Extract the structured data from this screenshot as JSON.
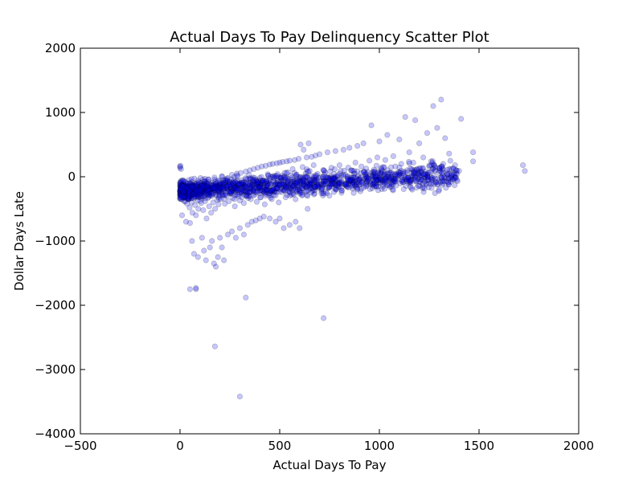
{
  "chart_data": {
    "type": "scatter",
    "title": "Actual Days To Pay Delinquency Scatter Plot",
    "xlabel": "Actual Days To Pay",
    "ylabel": "Dollar Days Late",
    "xlim": [
      -500,
      2000
    ],
    "ylim": [
      -4000,
      2000
    ],
    "xticks": [
      -500,
      0,
      500,
      1000,
      1500,
      2000
    ],
    "yticks": [
      -4000,
      -3000,
      -2000,
      -1000,
      0,
      1000,
      2000
    ],
    "xtick_labels": [
      "−500",
      "0",
      "500",
      "1000",
      "1500",
      "2000"
    ],
    "ytick_labels": [
      "−4000",
      "−3000",
      "−2000",
      "−1000",
      "0",
      "1000",
      "2000"
    ],
    "grid": false,
    "marker_color": "#0000ff",
    "marker_edge_color": "#000000",
    "marker_alpha": 0.22,
    "points": [
      [
        0,
        160
      ],
      [
        0,
        140
      ],
      [
        2,
        170
      ],
      [
        5,
        120
      ],
      [
        8,
        -120
      ],
      [
        10,
        -200
      ],
      [
        12,
        -260
      ],
      [
        15,
        -150
      ],
      [
        18,
        -300
      ],
      [
        20,
        -60
      ],
      [
        22,
        -380
      ],
      [
        25,
        -240
      ],
      [
        28,
        -180
      ],
      [
        30,
        -320
      ],
      [
        32,
        -100
      ],
      [
        35,
        -420
      ],
      [
        38,
        -270
      ],
      [
        40,
        -150
      ],
      [
        42,
        -350
      ],
      [
        45,
        -50
      ],
      [
        48,
        -480
      ],
      [
        50,
        -230
      ],
      [
        52,
        -120
      ],
      [
        55,
        -300
      ],
      [
        58,
        -400
      ],
      [
        60,
        -80
      ],
      [
        62,
        -560
      ],
      [
        65,
        -260
      ],
      [
        68,
        -190
      ],
      [
        70,
        -340
      ],
      [
        72,
        -30
      ],
      [
        75,
        -440
      ],
      [
        78,
        -210
      ],
      [
        80,
        -600
      ],
      [
        82,
        -120
      ],
      [
        85,
        -280
      ],
      [
        88,
        -370
      ],
      [
        90,
        -60
      ],
      [
        92,
        -500
      ],
      [
        95,
        -230
      ],
      [
        98,
        -160
      ],
      [
        100,
        -320
      ],
      [
        103,
        -20
      ],
      [
        106,
        -410
      ],
      [
        110,
        -250
      ],
      [
        113,
        -140
      ],
      [
        116,
        -520
      ],
      [
        120,
        -300
      ],
      [
        123,
        -80
      ],
      [
        126,
        -380
      ],
      [
        130,
        -200
      ],
      [
        133,
        -650
      ],
      [
        136,
        -120
      ],
      [
        140,
        -330
      ],
      [
        143,
        -40
      ],
      [
        146,
        -460
      ],
      [
        150,
        -250
      ],
      [
        153,
        -170
      ],
      [
        156,
        -560
      ],
      [
        160,
        -300
      ],
      [
        163,
        -90
      ],
      [
        166,
        -400
      ],
      [
        170,
        -220
      ],
      [
        173,
        -10
      ],
      [
        176,
        -500
      ],
      [
        180,
        -280
      ],
      [
        183,
        -150
      ],
      [
        186,
        -360
      ],
      [
        190,
        -60
      ],
      [
        193,
        -430
      ],
      [
        196,
        -240
      ],
      [
        200,
        -120
      ],
      [
        205,
        -350
      ],
      [
        210,
        10
      ],
      [
        215,
        -280
      ],
      [
        220,
        -190
      ],
      [
        225,
        -420
      ],
      [
        230,
        -80
      ],
      [
        235,
        -300
      ],
      [
        240,
        -20
      ],
      [
        245,
        -380
      ],
      [
        250,
        -160
      ],
      [
        255,
        -250
      ],
      [
        260,
        30
      ],
      [
        265,
        -330
      ],
      [
        270,
        -110
      ],
      [
        275,
        -460
      ],
      [
        280,
        -200
      ],
      [
        285,
        50
      ],
      [
        290,
        -280
      ],
      [
        295,
        -140
      ],
      [
        300,
        -370
      ],
      [
        305,
        60
      ],
      [
        310,
        -230
      ],
      [
        315,
        -90
      ],
      [
        320,
        -410
      ],
      [
        325,
        -170
      ],
      [
        330,
        80
      ],
      [
        335,
        -300
      ],
      [
        340,
        -40
      ],
      [
        345,
        -250
      ],
      [
        350,
        100
      ],
      [
        355,
        -350
      ],
      [
        360,
        -120
      ],
      [
        365,
        -200
      ],
      [
        370,
        120
      ],
      [
        375,
        -280
      ],
      [
        380,
        -60
      ],
      [
        385,
        -390
      ],
      [
        390,
        140
      ],
      [
        395,
        -180
      ],
      [
        400,
        -20
      ],
      [
        405,
        -320
      ],
      [
        410,
        160
      ],
      [
        415,
        -230
      ],
      [
        420,
        -100
      ],
      [
        425,
        -430
      ],
      [
        430,
        170
      ],
      [
        435,
        -150
      ],
      [
        440,
        40
      ],
      [
        445,
        -260
      ],
      [
        450,
        190
      ],
      [
        455,
        -80
      ],
      [
        460,
        -350
      ],
      [
        465,
        200
      ],
      [
        470,
        -190
      ],
      [
        475,
        10
      ],
      [
        480,
        -290
      ],
      [
        485,
        210
      ],
      [
        490,
        -120
      ],
      [
        495,
        -400
      ],
      [
        500,
        220
      ],
      [
        505,
        -30
      ],
      [
        510,
        -240
      ],
      [
        515,
        230
      ],
      [
        520,
        -160
      ],
      [
        525,
        60
      ],
      [
        530,
        -320
      ],
      [
        535,
        240
      ],
      [
        540,
        -80
      ],
      [
        545,
        -200
      ],
      [
        550,
        250
      ],
      [
        555,
        20
      ],
      [
        560,
        -280
      ],
      [
        565,
        120
      ],
      [
        570,
        -130
      ],
      [
        575,
        260
      ],
      [
        580,
        -350
      ],
      [
        585,
        30
      ],
      [
        590,
        -200
      ],
      [
        595,
        280
      ],
      [
        600,
        -60
      ],
      [
        605,
        500
      ],
      [
        610,
        -250
      ],
      [
        615,
        150
      ],
      [
        620,
        420
      ],
      [
        625,
        -150
      ],
      [
        630,
        50
      ],
      [
        635,
        300
      ],
      [
        640,
        -300
      ],
      [
        645,
        520
      ],
      [
        650,
        90
      ],
      [
        655,
        -180
      ],
      [
        660,
        310
      ],
      [
        665,
        -40
      ],
      [
        670,
        180
      ],
      [
        675,
        -260
      ],
      [
        680,
        330
      ],
      [
        685,
        20
      ],
      [
        690,
        -120
      ],
      [
        700,
        350
      ],
      [
        710,
        -200
      ],
      [
        720,
        100
      ],
      [
        730,
        -60
      ],
      [
        740,
        380
      ],
      [
        750,
        -150
      ],
      [
        760,
        140
      ],
      [
        770,
        -30
      ],
      [
        780,
        400
      ],
      [
        790,
        -100
      ],
      [
        800,
        180
      ],
      [
        810,
        -250
      ],
      [
        820,
        420
      ],
      [
        830,
        30
      ],
      [
        840,
        -160
      ],
      [
        850,
        450
      ],
      [
        860,
        100
      ],
      [
        870,
        -80
      ],
      [
        880,
        220
      ],
      [
        890,
        480
      ],
      [
        900,
        -40
      ],
      [
        910,
        160
      ],
      [
        920,
        520
      ],
      [
        930,
        40
      ],
      [
        940,
        -120
      ],
      [
        950,
        250
      ],
      [
        960,
        800
      ],
      [
        970,
        80
      ],
      [
        980,
        -20
      ],
      [
        990,
        300
      ],
      [
        1000,
        550
      ],
      [
        1010,
        140
      ],
      [
        1020,
        -60
      ],
      [
        1030,
        260
      ],
      [
        1040,
        650
      ],
      [
        1050,
        60
      ],
      [
        1060,
        -100
      ],
      [
        1070,
        320
      ],
      [
        1080,
        160
      ],
      [
        1090,
        40
      ],
      [
        1100,
        580
      ],
      [
        1110,
        200
      ],
      [
        1120,
        -80
      ],
      [
        1130,
        930
      ],
      [
        1140,
        100
      ],
      [
        1150,
        380
      ],
      [
        1160,
        -40
      ],
      [
        1170,
        220
      ],
      [
        1180,
        880
      ],
      [
        1190,
        120
      ],
      [
        1200,
        520
      ],
      [
        1210,
        60
      ],
      [
        1220,
        300
      ],
      [
        1230,
        -20
      ],
      [
        1240,
        680
      ],
      [
        1250,
        160
      ],
      [
        1260,
        240
      ],
      [
        1270,
        1100
      ],
      [
        1280,
        100
      ],
      [
        1290,
        760
      ],
      [
        1300,
        140
      ],
      [
        1310,
        1200
      ],
      [
        1320,
        200
      ],
      [
        1330,
        600
      ],
      [
        1340,
        60
      ],
      [
        1350,
        360
      ],
      [
        1360,
        120
      ],
      [
        1380,
        180
      ],
      [
        1410,
        900
      ],
      [
        1470,
        380
      ],
      [
        1470,
        240
      ],
      [
        1720,
        180
      ],
      [
        1730,
        90
      ],
      [
        10,
        -600
      ],
      [
        30,
        -700
      ],
      [
        50,
        -720
      ],
      [
        60,
        -1000
      ],
      [
        70,
        -1200
      ],
      [
        90,
        -1250
      ],
      [
        110,
        -950
      ],
      [
        120,
        -1150
      ],
      [
        130,
        -1300
      ],
      [
        150,
        -1100
      ],
      [
        160,
        -1000
      ],
      [
        170,
        -1350
      ],
      [
        180,
        -1400
      ],
      [
        190,
        -1250
      ],
      [
        200,
        -950
      ],
      [
        210,
        -1100
      ],
      [
        220,
        -1300
      ],
      [
        240,
        -900
      ],
      [
        260,
        -850
      ],
      [
        280,
        -950
      ],
      [
        300,
        -800
      ],
      [
        320,
        -900
      ],
      [
        340,
        -750
      ],
      [
        360,
        -700
      ],
      [
        380,
        -680
      ],
      [
        400,
        -650
      ],
      [
        420,
        -620
      ],
      [
        450,
        -650
      ],
      [
        480,
        -700
      ],
      [
        500,
        -650
      ],
      [
        520,
        -800
      ],
      [
        550,
        -750
      ],
      [
        580,
        -700
      ],
      [
        600,
        -800
      ],
      [
        640,
        -500
      ],
      [
        50,
        -1750
      ],
      [
        80,
        -1750
      ],
      [
        80,
        -1730
      ],
      [
        175,
        -2640
      ],
      [
        300,
        -3420
      ],
      [
        330,
        -1880
      ],
      [
        720,
        -2200
      ]
    ]
  }
}
